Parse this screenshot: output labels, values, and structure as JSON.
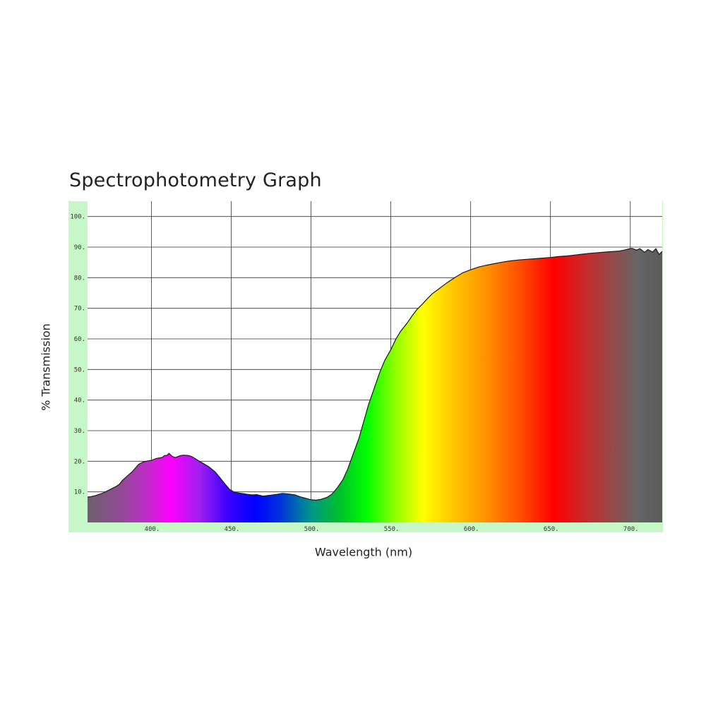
{
  "chart_data": {
    "type": "area",
    "title": "Spectrophotometry Graph",
    "xlabel": "Wavelength (nm)",
    "ylabel": "% Transmission",
    "xlim": [
      360,
      720
    ],
    "ylim": [
      0,
      105
    ],
    "x_ticks": [
      400,
      450,
      500,
      550,
      600,
      650,
      700
    ],
    "x_tick_labels": [
      "400.",
      "450.",
      "500.",
      "550.",
      "600.",
      "650.",
      "700."
    ],
    "y_ticks": [
      10,
      20,
      30,
      40,
      50,
      60,
      70,
      80,
      90,
      100
    ],
    "y_tick_labels": [
      "10.",
      "20.",
      "30.",
      "40.",
      "50.",
      "60.",
      "70.",
      "80.",
      "90.",
      "100."
    ],
    "grid": true,
    "colors": {
      "frame": "#c6f7c6",
      "plot_background": "#ffffff",
      "grid": "#333333",
      "outline": "#1a1a1a"
    },
    "fill_gradient": [
      {
        "x": 360,
        "color": "#6e5f6e"
      },
      {
        "x": 380,
        "color": "#8f4c92"
      },
      {
        "x": 395,
        "color": "#b632c2"
      },
      {
        "x": 412,
        "color": "#ff00ff"
      },
      {
        "x": 430,
        "color": "#a020f0"
      },
      {
        "x": 448,
        "color": "#3b00ff"
      },
      {
        "x": 465,
        "color": "#0000ff"
      },
      {
        "x": 480,
        "color": "#0030e0"
      },
      {
        "x": 500,
        "color": "#009688"
      },
      {
        "x": 518,
        "color": "#00c02a"
      },
      {
        "x": 535,
        "color": "#00ff00"
      },
      {
        "x": 552,
        "color": "#8aff00"
      },
      {
        "x": 570,
        "color": "#ffff00"
      },
      {
        "x": 590,
        "color": "#ffc400"
      },
      {
        "x": 612,
        "color": "#ff8a00"
      },
      {
        "x": 632,
        "color": "#ff4a00"
      },
      {
        "x": 652,
        "color": "#ff0000"
      },
      {
        "x": 672,
        "color": "#c72a2a"
      },
      {
        "x": 692,
        "color": "#8a5050"
      },
      {
        "x": 705,
        "color": "#666666"
      },
      {
        "x": 720,
        "color": "#5a5a5a"
      }
    ],
    "x": [
      360,
      362,
      365,
      368,
      370,
      372,
      375,
      378,
      380,
      382,
      385,
      388,
      390,
      392,
      395,
      398,
      400,
      403,
      405,
      407,
      408,
      410,
      411,
      412,
      413,
      415,
      418,
      420,
      423,
      425,
      427,
      430,
      433,
      436,
      440,
      443,
      446,
      449,
      452,
      455,
      458,
      460,
      463,
      466,
      470,
      473,
      476,
      479,
      482,
      486,
      490,
      493,
      496,
      500,
      503,
      506,
      510,
      513,
      516,
      520,
      523,
      526,
      530,
      533,
      536,
      540,
      543,
      546,
      550,
      553,
      556,
      560,
      563,
      566,
      570,
      573,
      576,
      580,
      585,
      590,
      595,
      600,
      605,
      610,
      615,
      620,
      625,
      630,
      635,
      640,
      645,
      650,
      655,
      660,
      665,
      670,
      675,
      680,
      685,
      690,
      693,
      696,
      699,
      701,
      704,
      706,
      709,
      711,
      714,
      716,
      718,
      720
    ],
    "values": [
      8.3,
      8.4,
      8.8,
      9.3,
      9.7,
      10.2,
      11.0,
      11.8,
      12.5,
      13.8,
      15.2,
      16.6,
      17.8,
      19.0,
      19.8,
      20.1,
      20.3,
      20.9,
      21.1,
      21.3,
      21.8,
      22.0,
      22.6,
      22.1,
      21.6,
      21.2,
      21.8,
      22.0,
      21.9,
      21.6,
      21.0,
      20.0,
      19.1,
      18.2,
      16.5,
      14.6,
      12.6,
      10.8,
      9.9,
      9.6,
      9.4,
      9.2,
      9.0,
      9.1,
      8.6,
      8.8,
      9.0,
      9.2,
      9.5,
      9.3,
      9.0,
      8.4,
      8.0,
      7.4,
      7.3,
      7.5,
      8.2,
      9.2,
      11.0,
      14.0,
      17.5,
      21.8,
      27.5,
      33.0,
      38.5,
      44.5,
      49.0,
      52.8,
      56.5,
      59.8,
      62.4,
      65.0,
      67.3,
      69.4,
      71.5,
      73.2,
      74.8,
      76.3,
      78.3,
      80.0,
      81.6,
      82.6,
      83.5,
      84.1,
      84.6,
      85.1,
      85.5,
      85.8,
      86.0,
      86.2,
      86.4,
      86.6,
      86.9,
      87.1,
      87.4,
      87.7,
      88.0,
      88.2,
      88.4,
      88.6,
      88.7,
      89.0,
      89.4,
      89.6,
      89.0,
      89.5,
      88.3,
      89.2,
      88.4,
      89.5,
      87.6,
      88.6
    ]
  }
}
